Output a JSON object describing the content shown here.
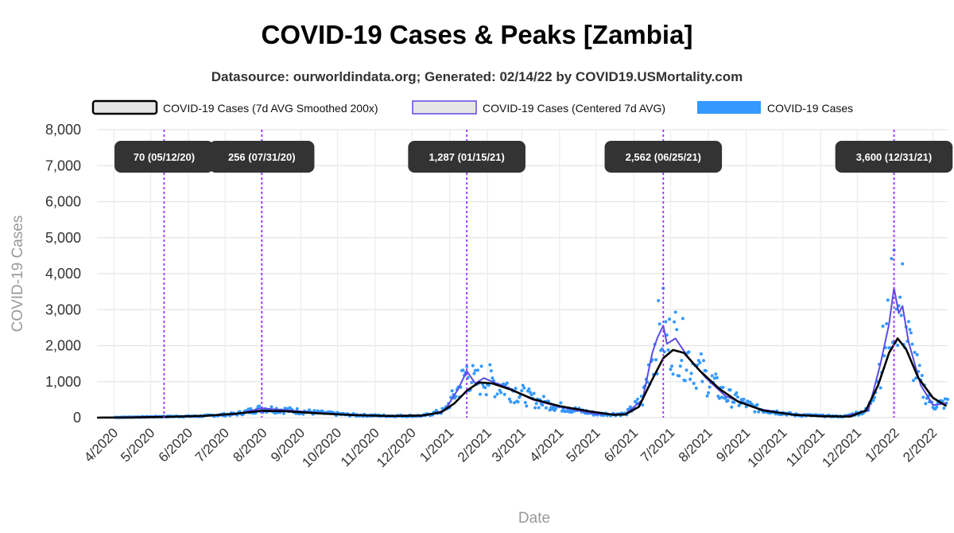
{
  "chart_data": {
    "type": "line",
    "title": "COVID-19 Cases & Peaks [Zambia]",
    "subtitle": "Datasource: ourworldindata.org; Generated: 02/14/22 by COVID19.USMortality.com",
    "xlabel": "Date",
    "ylabel": "COVID-19 Cases",
    "ylim": [
      0,
      8000
    ],
    "yticks": [
      0,
      1000,
      2000,
      3000,
      4000,
      5000,
      6000,
      7000,
      8000
    ],
    "ytick_labels": [
      "0",
      "1,000",
      "2,000",
      "3,000",
      "4,000",
      "5,000",
      "6,000",
      "7,000",
      "8,000"
    ],
    "xlim": [
      "2020-03-18",
      "2022-02-13"
    ],
    "xticks": [
      "2020-04-01",
      "2020-05-01",
      "2020-06-01",
      "2020-07-01",
      "2020-08-01",
      "2020-09-01",
      "2020-10-01",
      "2020-11-01",
      "2020-12-01",
      "2021-01-01",
      "2021-02-01",
      "2021-03-01",
      "2021-04-01",
      "2021-05-01",
      "2021-06-01",
      "2021-07-01",
      "2021-08-01",
      "2021-09-01",
      "2021-10-01",
      "2021-11-01",
      "2021-12-01",
      "2022-01-01",
      "2022-02-01"
    ],
    "xtick_labels": [
      "4/2020",
      "5/2020",
      "6/2020",
      "7/2020",
      "8/2020",
      "9/2020",
      "10/2020",
      "11/2020",
      "12/2020",
      "1/2021",
      "2/2021",
      "3/2021",
      "4/2021",
      "5/2021",
      "6/2021",
      "7/2021",
      "8/2021",
      "9/2021",
      "10/2021",
      "11/2021",
      "12/2021",
      "1/2022",
      "2/2022"
    ],
    "grid": true,
    "legend_position": "top",
    "legend": [
      {
        "label": "COVID-19 Cases (7d AVG Smoothed 200x)",
        "color": "#000000"
      },
      {
        "label": "COVID-19 Cases (Centered 7d AVG)",
        "color": "#5b4ce6"
      },
      {
        "label": "COVID-19 Cases",
        "color": "#3399ff"
      }
    ],
    "peaks": [
      {
        "date": "2020-05-12",
        "label": "70 (05/12/20)"
      },
      {
        "date": "2020-07-31",
        "label": "256 (07/31/20)"
      },
      {
        "date": "2021-01-15",
        "label": "1,287 (01/15/21)"
      },
      {
        "date": "2021-06-25",
        "label": "2,562 (06/25/21)"
      },
      {
        "date": "2021-12-31",
        "label": "3,600 (12/31/21)"
      }
    ],
    "series": [
      {
        "name": "COVID-19 Cases (7d AVG Smoothed 200x)",
        "color": "#000000",
        "points": [
          [
            "2020-03-18",
            0
          ],
          [
            "2020-04-15",
            5
          ],
          [
            "2020-05-12",
            20
          ],
          [
            "2020-06-15",
            50
          ],
          [
            "2020-07-10",
            110
          ],
          [
            "2020-07-31",
            190
          ],
          [
            "2020-08-20",
            180
          ],
          [
            "2020-09-15",
            120
          ],
          [
            "2020-10-15",
            70
          ],
          [
            "2020-11-15",
            45
          ],
          [
            "2020-12-10",
            60
          ],
          [
            "2020-12-25",
            150
          ],
          [
            "2021-01-05",
            400
          ],
          [
            "2021-01-15",
            750
          ],
          [
            "2021-01-25",
            980
          ],
          [
            "2021-02-05",
            950
          ],
          [
            "2021-02-20",
            780
          ],
          [
            "2021-03-10",
            520
          ],
          [
            "2021-04-01",
            320
          ],
          [
            "2021-04-25",
            180
          ],
          [
            "2021-05-15",
            80
          ],
          [
            "2021-05-25",
            90
          ],
          [
            "2021-06-05",
            300
          ],
          [
            "2021-06-15",
            1000
          ],
          [
            "2021-06-25",
            1650
          ],
          [
            "2021-07-03",
            1880
          ],
          [
            "2021-07-12",
            1800
          ],
          [
            "2021-07-25",
            1300
          ],
          [
            "2021-08-10",
            800
          ],
          [
            "2021-08-25",
            450
          ],
          [
            "2021-09-15",
            200
          ],
          [
            "2021-10-10",
            80
          ],
          [
            "2021-11-01",
            40
          ],
          [
            "2021-11-25",
            30
          ],
          [
            "2021-12-08",
            200
          ],
          [
            "2021-12-18",
            900
          ],
          [
            "2021-12-27",
            1800
          ],
          [
            "2022-01-03",
            2200
          ],
          [
            "2022-01-10",
            1900
          ],
          [
            "2022-01-20",
            1100
          ],
          [
            "2022-02-01",
            550
          ],
          [
            "2022-02-12",
            320
          ]
        ]
      },
      {
        "name": "COVID-19 Cases (Centered 7d AVG)",
        "color": "#5b4ce6",
        "points": [
          [
            "2020-03-18",
            0
          ],
          [
            "2020-05-12",
            30
          ],
          [
            "2020-06-10",
            40
          ],
          [
            "2020-07-10",
            100
          ],
          [
            "2020-07-31",
            260
          ],
          [
            "2020-08-15",
            220
          ],
          [
            "2020-09-10",
            150
          ],
          [
            "2020-10-10",
            80
          ],
          [
            "2020-11-10",
            50
          ],
          [
            "2020-12-10",
            50
          ],
          [
            "2020-12-28",
            200
          ],
          [
            "2021-01-08",
            800
          ],
          [
            "2021-01-15",
            1290
          ],
          [
            "2021-01-22",
            950
          ],
          [
            "2021-01-29",
            1100
          ],
          [
            "2021-02-05",
            1000
          ],
          [
            "2021-02-20",
            800
          ],
          [
            "2021-03-10",
            500
          ],
          [
            "2021-04-01",
            300
          ],
          [
            "2021-05-01",
            100
          ],
          [
            "2021-05-25",
            100
          ],
          [
            "2021-06-08",
            500
          ],
          [
            "2021-06-16",
            1800
          ],
          [
            "2021-06-20",
            2200
          ],
          [
            "2021-06-25",
            2560
          ],
          [
            "2021-06-28",
            2050
          ],
          [
            "2021-07-05",
            2200
          ],
          [
            "2021-07-15",
            1700
          ],
          [
            "2021-07-30",
            1100
          ],
          [
            "2021-08-15",
            600
          ],
          [
            "2021-09-10",
            250
          ],
          [
            "2021-10-10",
            80
          ],
          [
            "2021-11-20",
            30
          ],
          [
            "2021-12-10",
            200
          ],
          [
            "2021-12-20",
            1500
          ],
          [
            "2021-12-27",
            2600
          ],
          [
            "2021-12-31",
            3600
          ],
          [
            "2022-01-04",
            2900
          ],
          [
            "2022-01-07",
            3100
          ],
          [
            "2022-01-12",
            2100
          ],
          [
            "2022-01-22",
            900
          ],
          [
            "2022-02-01",
            350
          ],
          [
            "2022-02-12",
            400
          ]
        ]
      },
      {
        "name": "COVID-19 Cases",
        "color": "#3399ff",
        "style": "scatter"
      }
    ]
  }
}
